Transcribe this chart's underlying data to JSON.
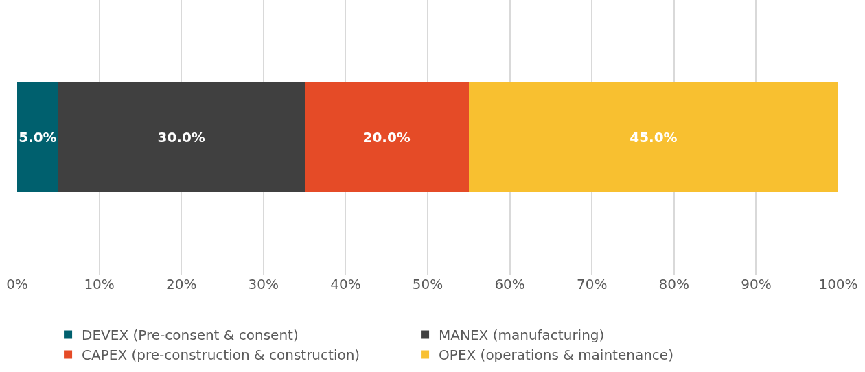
{
  "chart_data": {
    "type": "bar",
    "orientation": "horizontal",
    "stacked": true,
    "categories": [
      null
    ],
    "series": [
      {
        "name": "DEVEX (Pre-consent & consent)",
        "color": "#00606e",
        "values": [
          5
        ],
        "value_labels": [
          "5.0%"
        ]
      },
      {
        "name": "MANEX (manufacturing)",
        "color": "#404040",
        "values": [
          30
        ],
        "value_labels": [
          "30.0%"
        ]
      },
      {
        "name": "CAPEX (pre-construction & construction)",
        "color": "#e54b27",
        "values": [
          20
        ],
        "value_labels": [
          "20.0%"
        ]
      },
      {
        "name": "OPEX (operations & maintenance)",
        "color": "#f8c030",
        "values": [
          45
        ],
        "value_labels": [
          "45.0%"
        ]
      }
    ],
    "xlim": [
      0,
      100
    ],
    "xticks": [
      {
        "value": 0,
        "label": "0%"
      },
      {
        "value": 10,
        "label": "10%"
      },
      {
        "value": 20,
        "label": "20%"
      },
      {
        "value": 30,
        "label": "30%"
      },
      {
        "value": 40,
        "label": "40%"
      },
      {
        "value": 50,
        "label": "50%"
      },
      {
        "value": 60,
        "label": "60%"
      },
      {
        "value": 70,
        "label": "70%"
      },
      {
        "value": 80,
        "label": "80%"
      },
      {
        "value": 90,
        "label": "90%"
      },
      {
        "value": 100,
        "label": "100%"
      }
    ],
    "grid": "x",
    "legend": "bottom"
  }
}
